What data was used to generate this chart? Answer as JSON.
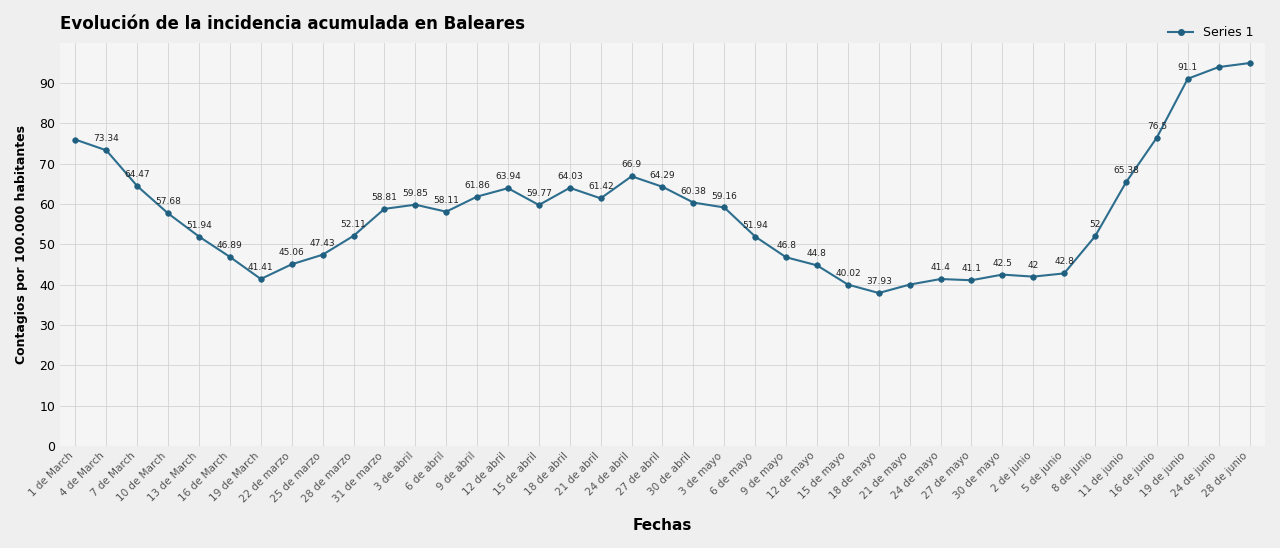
{
  "title": "Evolución de la incidencia acumulada en Baleares",
  "legend_label": "Series 1",
  "xlabel": "Fechas",
  "ylabel": "Contagios por 100.000 habitantes",
  "ylim": [
    0,
    100
  ],
  "yticks": [
    0,
    10,
    20,
    30,
    40,
    50,
    60,
    70,
    80,
    90
  ],
  "line_color": "#2d6e8e",
  "marker_color": "#1f5f80",
  "background_color": "#efefef",
  "plot_bg_color": "#f5f5f5",
  "dates": [
    "1 de March",
    "4 de March",
    "7 de March",
    "10 de March",
    "13 de March",
    "16 de March",
    "19 de March",
    "22 de marzo",
    "25 de marzo",
    "28 de marzo",
    "31 de marzo",
    "3 de abril",
    "6 de abril",
    "9 de abril",
    "12 de abril",
    "15 de abril",
    "18 de abril",
    "21 de abril",
    "24 de abril",
    "27 de abril",
    "30 de abril",
    "3 de mayo",
    "6 de mayo",
    "9 de mayo",
    "12 de mayo",
    "15 de mayo",
    "18 de mayo",
    "21 de mayo",
    "24 de mayo",
    "27 de mayo",
    "30 de mayo",
    "2 de junio",
    "5 de junio",
    "8 de junio",
    "11 de junio",
    "16 de junio",
    "19 de junio",
    "24 de junio",
    "28 de junio"
  ],
  "values": [
    76.0,
    73.34,
    64.47,
    57.68,
    51.94,
    46.89,
    41.41,
    45.06,
    47.43,
    52.11,
    58.81,
    59.85,
    58.11,
    61.86,
    63.94,
    59.77,
    64.03,
    61.42,
    66.9,
    64.29,
    60.38,
    59.16,
    51.94,
    46.8,
    44.8,
    40.02,
    37.93,
    40.02,
    41.4,
    41.1,
    42.5,
    42.0,
    42.8,
    52.0,
    65.38,
    76.5,
    91.1,
    94.0,
    95.0
  ],
  "labeled_indices": [
    1,
    2,
    3,
    4,
    5,
    6,
    7,
    8,
    9,
    10,
    11,
    12,
    13,
    14,
    15,
    16,
    17,
    18,
    19,
    20,
    21,
    22,
    23,
    24,
    25,
    26,
    28,
    29,
    30,
    31,
    32,
    33,
    34,
    35,
    36
  ],
  "labeled_texts": [
    "73.34",
    "64.47",
    "57.68",
    "51.94",
    "46.89",
    "41.41",
    "45.06",
    "47.43",
    "52.11",
    "58.81",
    "59.85",
    "58.11",
    "61.86",
    "63.94",
    "59.77",
    "64.03",
    "61.42",
    "66.9",
    "64.29",
    "60.38",
    "59.16",
    "51.94",
    "46.8",
    "44.8",
    "40.02",
    "37.93",
    "41.4",
    "41.1",
    "42.5",
    "42",
    "42.8",
    "52",
    "65.38",
    "76.5",
    "91.1"
  ]
}
